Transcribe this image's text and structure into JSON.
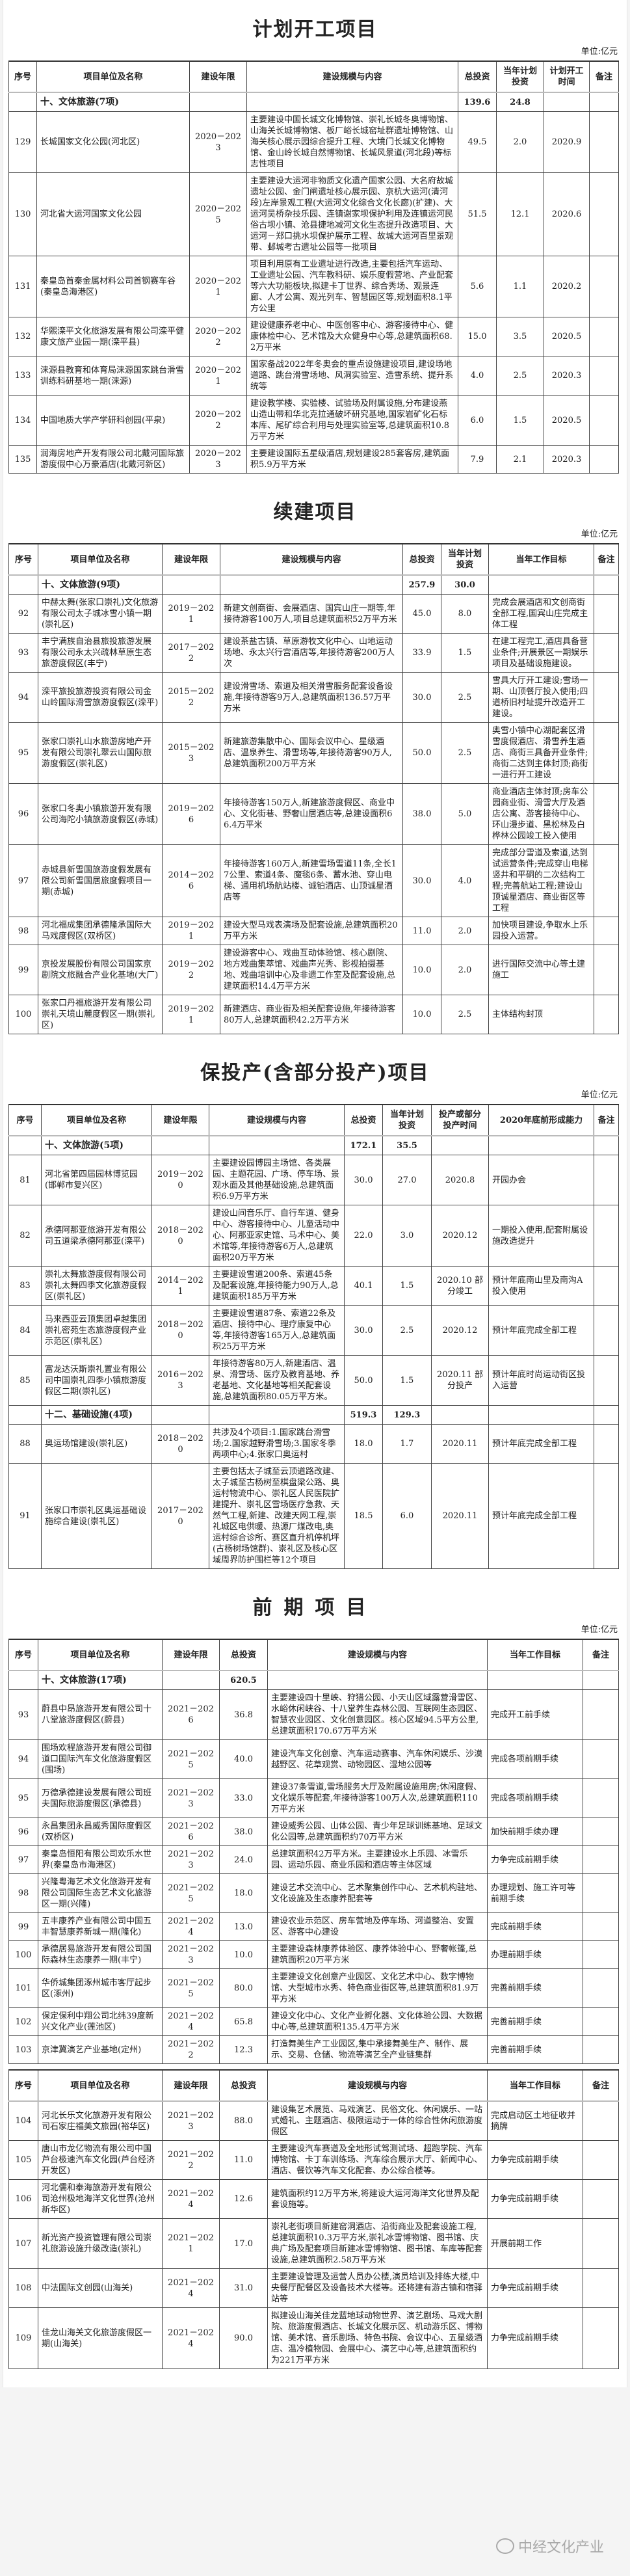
{
  "unit_label": "单位:亿元",
  "watermark": "中经文化产业",
  "sections": [
    {
      "title": "计划开工项目",
      "columns": [
        "序号",
        "项目单位及名称",
        "建设年限",
        "建设规模与内容",
        "总投资",
        "当年计划投资",
        "计划开工时间",
        "备注"
      ],
      "parts": [
        {
          "rows": [
            [
              "",
              "十、文体旅游(7项)",
              "",
              "",
              "139.6",
              "24.8",
              "",
              ""
            ],
            [
              "129",
              "长城国家文化公园(河北区)",
              "2020－2023",
              "主要建设中国长城文化博物馆、崇礼长城冬奥博物馆、山海关长城博物馆、板厂峪长城窑址群遗址博物馆、山海关核心展示园综合提升工程、大境门长城文化博物馆、金山岭长城自然博物馆、长城风景道(河北段)等标志性项目",
              "49.5",
              "2.0",
              "2020.9",
              ""
            ],
            [
              "130",
              "河北省大运河国家文化公园",
              "2020－2025",
              "主要建设大运河非物质文化遗产国家公园、大名府故城遗址公园、金门闸遗址核心展示园、京杭大运河(清河段)左岸景观工程(大运河文化综合文化长廊)(扩建)、大运河吴桥杂技乐园、连镇谢家坝保护利用及连镇运河民俗古坝小镇、沧县捷地减河文化生态提升改造项目、大运河－郑口挑水坝保护展示工程、故城大运河百里景观带、邺城考古遗址公园等一批项目",
              "51.5",
              "12.1",
              "2020.6",
              ""
            ],
            [
              "131",
              "秦皇岛首秦金属材料公司首钢赛车谷(秦皇岛海港区)",
              "2020－2021",
              "项目利用原有工业遗址进行改造,主要包括汽车运动、工业遗址公园、汽车教科研、娱乐度假营地、产业配套等六大功能板块,拟建卡丁世界、综合秀场、观景连廊、人才公寓、观光列车、智慧园区等,规划面积8.1平方公里",
              "5.6",
              "1.1",
              "2020.2",
              ""
            ],
            [
              "132",
              "华熙滦平文化旅游发展有限公司滦平健康文旅产业园一期(滦平县)",
              "2020－2022",
              "建设健康养老中心、中医创客中心、游客接待中心、健康体检中心、艺术馆及大众健身中心等,总建筑面积68.2万平米",
              "15.0",
              "3.5",
              "2020.5",
              ""
            ],
            [
              "133",
              "涞源县教育和体育局涞源国家跳台滑雪训练科研基地一期(涞源)",
              "2020－2021",
              "国家备战2022年冬奥会的重点设施建设项目,建设场地道路、跳台滑雪场地、风洞实验室、造雪系统、提升系统等",
              "4.0",
              "2.5",
              "2020.3",
              ""
            ],
            [
              "134",
              "中国地质大学产学研科创园(平泉)",
              "2020－2022",
              "建设教学楼、实验楼、试验场及附属设施,分布建设燕山造山带和华北克拉通破坏研究基地,国家岩矿化石标本库、尾矿综合利用与处理实验室等,总建筑面积10.8万平方米",
              "6.0",
              "1.5",
              "2020.5",
              ""
            ],
            [
              "135",
              "润海房地产开发有限公司北戴河国际旅游度假中心万豪酒店(北戴河新区)",
              "2020－2023",
              "主要建设国际五星级酒店,规划建设285套客房,建筑面积5.9万平方米",
              "7.9",
              "2.1",
              "2020.3",
              ""
            ]
          ]
        }
      ]
    },
    {
      "title": "续建项目",
      "columns": [
        "序号",
        "项目单位及名称",
        "建设年限",
        "建设规模与内容",
        "总投资",
        "当年计划投资",
        "当年工作目标",
        "备注"
      ],
      "parts": [
        {
          "rows": [
            [
              "",
              "十、文体旅游(9项)",
              "",
              "",
              "257.9",
              "30.0",
              "",
              ""
            ],
            [
              "92",
              "中赫太舞(张家口崇礼)文化旅游有限公司太子城冰雪小镇一期(崇礼区)",
              "2019－2021",
              "新建文创商街、会展酒店、国宾山庄一期等,年接待游客100万人,项目总建筑面积52万平方米",
              "45.0",
              "8.0",
              "完成会展酒店和文创商街全部工程,国宾山庄完成主体工程",
              ""
            ],
            [
              "93",
              "丰宁满族自治县旅投旅游发展有限公司永太兴疏林草原生态旅游度假区(丰宁)",
              "2017－2022",
              "建设茶盐古镇、草原游牧文化中心、山地运动场地、永太兴行宫酒店等,年接待游客200万人次",
              "33.9",
              "1.5",
              "在建工程完工,酒店具备营业条件;开展景区一期娱乐项目及基础设施建设。",
              ""
            ],
            [
              "94",
              "滦平旅投旅游投资有限公司金山岭国际滑雪旅游度假区(滦平)",
              "2015－2022",
              "建设滑雪场、索道及相关滑雪服务配套设备设施,年接待游客9万人,总建筑面积136.57万平方米",
              "30.0",
              "2.5",
              "雪具大厅开工建设;雪场一期、山顶餐厅投入使用;四道桥旧村址提升改造开工建设。",
              ""
            ],
            [
              "95",
              "张家口崇礼山水旅游房地产开发有限公司崇礼翠云山国际旅游度假区(崇礼区)",
              "2015－2023",
              "新建旅游集散中心、国际会议中心、星级酒店、温泉养生、滑雪场等,年接待游客90万人,总建筑面积200万平方米",
              "50.0",
              "2.5",
              "奥雪小镇中心湖配套区滑雪度假酒店、滑雪养生酒店、商街三具备开业条件;商街二达到主体封顶;商街一进行开工建设",
              ""
            ],
            [
              "96",
              "张家口冬奥小镇旅游开发有限公司海陀小镇旅游度假区(赤城)",
              "2019－2026",
              "年接待游客150万人,新建旅游度假区、商业中心、文化街巷、野奢山居酒店等,总建设面积66.4万平米",
              "38.0",
              "5.0",
              "商业酒店主体封顶;房车公园商业街、滑雪大厅及酒店公寓、游客接待中心、环山漫步道、黑松林及白桦林公园竣工投入使用",
              ""
            ],
            [
              "97",
              "赤城县新雪国旅游度假发展有限公司新雪国居旅度假项目一期(赤城)",
              "2014－2026",
              "年接待游客160万人,新建雪场雪道11条,全长17公里、索道4条、魔毯6条、蓄水池、穿山电梯、通用机场航站楼、诚铂酒店、山顶诚星酒店等",
              "30.0",
              "4.0",
              "完成部分雪道及索道,达到试运营条件;完成穿山电梯竖井和平硐的二次结构工程;完善航站工程;建设山顶诚星酒店、商业街区等工程",
              ""
            ],
            [
              "98",
              "河北福成集团承德隆承国际大马戏度假区(双桥区)",
              "2019－2021",
              "建设大型马戏表演场及配套设施,总建筑面积20万平方米",
              "11.0",
              "2.0",
              "加快项目建设,争取水上乐园投入运营。",
              ""
            ],
            [
              "99",
              "京投发展股份有限公司国家京剧院文旅融合产业化基地(大厂)",
              "2019－2022",
              "建设游客中心、戏曲互动体验馆、核心剧院、地方戏曲集萃馆、戏曲声光秀、影视拍摄基地、戏曲培训中心及非遗工作室及配套设施,总建筑面积14.4万平方米",
              "10.0",
              "2.0",
              "进行国际交流中心等土建施工",
              ""
            ],
            [
              "100",
              "张家口丹福旅游开发有限公司崇礼天境山麓度假区一期(崇礼区)",
              "2019－2021",
              "新建酒店、商业街及相关配套设施,年接待游客80万人,总建筑面积42.2万平方米",
              "10.0",
              "2.5",
              "主体结构封顶",
              ""
            ]
          ]
        }
      ]
    },
    {
      "title": "保投产(含部分投产)项目",
      "columns": [
        "序号",
        "项目单位及名称",
        "建设年限",
        "建设规模与内容",
        "总投资",
        "当年计划投资",
        "投产或部分投产时间",
        "2020年底前形成能力",
        "备注"
      ],
      "parts": [
        {
          "rows": [
            [
              "",
              "十、文体旅游(5项)",
              "",
              "",
              "172.1",
              "35.5",
              "",
              "",
              ""
            ],
            [
              "81",
              "河北省第四届园林博览园(邯郸市复兴区)",
              "2019－2020",
              "主要建设园博园主场馆、各类展园、主题花园、广场、停车场、景观水面及其他基础设施,总建筑面积6.9万平方米",
              "30.0",
              "27.0",
              "2020.8",
              "开园办会",
              ""
            ],
            [
              "82",
              "承德阿那亚旅游开发有限公司五道梁承德阿那亚(滦平)",
              "2018－2020",
              "建设山间音乐厅、自行车道、健身中心、游客接待中心、儿童活动中心、阿那亚家史馆、马术中心、美术馆等,年接待游客6万人,总建筑面积20万平方米",
              "22.0",
              "3.0",
              "2020.12",
              "一期投入使用,配套附属设施改造提升",
              ""
            ],
            [
              "83",
              "崇礼太舞旅游度假有限公司崇礼太舞四季文化旅游度假区(崇礼区)",
              "2014－2021",
              "主要建设雪道200条、索道45条及配套设施,年接待能力90万人,总建筑面积185万平方米",
              "40.1",
              "1.5",
              "2020.10 部分竣工",
              "预计年底南山里及南沟A投入使用",
              ""
            ],
            [
              "84",
              "马来西亚云顶集团卓越集团崇礼密苑生态旅游度假产业示范区(崇礼区)",
              "2018－2020",
              "主要建设雪道87条、索道22条及酒店、接待中心、理疗康复中心等,年接待游客165万人,总建筑面积25万平方米",
              "30.0",
              "2.5",
              "2020.12",
              "预计年底完成全部工程",
              ""
            ],
            [
              "85",
              "富龙达沃斯崇礼置业有限公司中国崇礼四季小镇旅游度假区二期(崇礼区)",
              "2016－2023",
              "年接待游客80万人,新建酒店、温泉、滑雪场、医疗及教育基地、养老基地、文化基地等相关配套设施,总建筑面积80.05万平方米。",
              "50.0",
              "1.5",
              "2020.11 部分投产",
              "预计年底时尚运动街区投入运营",
              ""
            ],
            [
              "",
              "十二、基础设施(4项)",
              "",
              "",
              "519.3",
              "129.3",
              "",
              "",
              ""
            ],
            [
              "88",
              "奥运场馆建设(崇礼区)",
              "2018－2020",
              "共涉及4个项目:1.国家跳台滑雪场;2.国家越野滑雪场;3.国家冬季两项中心;4.张家口奥运村",
              "18.0",
              "1.7",
              "2020.11",
              "预计年底完成全部工程",
              ""
            ],
            [
              "91",
              "张家口市崇礼区奥运基础设施综合建设(崇礼区)",
              "2017－2020",
              "主要包括太子城至云顶道路改建、太子城至古杨树至棋盘梁公路、奥运村物流中心、崇礼区人民医院扩建提升、崇礼区雪场医疗急救、天然气工程,新建、改建天网工程,崇礼城区电供暖、热源厂煤改电,奥运村综合诊所、赛区直升机停机坪(古杨树场馆群)、崇礼区及核心区域周界防护围栏等12个项目",
              "18.5",
              "6.0",
              "2020.11",
              "预计年底完成全部工程",
              ""
            ]
          ]
        }
      ]
    },
    {
      "title": "前期项目",
      "columns": [
        "序号",
        "项目单位及名称",
        "建设年限",
        "总投资",
        "建设规模与内容",
        "当年工作目标",
        "备注"
      ],
      "parts": [
        {
          "rows": [
            [
              "",
              "十、文体旅游(17项)",
              "",
              "620.5",
              "",
              "",
              ""
            ],
            [
              "93",
              "蔚县中昂旅游开发有限公司十八堂旅游度假区(蔚县)",
              "2021－2026",
              "36.8",
              "主要建设四十里峡、狩猎公园、小天山区域露营滑雪区、水峪休闲峡谷、十八堂养生森林公园、互联网生态园区、智慧农业园区、文化创意园区。核心区域94.5平方公里,总建筑面积170.67万平方米",
              "完成开工前手续",
              ""
            ],
            [
              "94",
              "围场欢程旅游开发有限公司御道口国际汽车文化旅游度假区(围场)",
              "2021－2025",
              "40.0",
              "建设汽车文化创意、汽车运动赛事、汽车休闲娱乐、沙漠越野区、花草观赏、动物园区、湿地公园等",
              "完成各项前期手续",
              ""
            ],
            [
              "95",
              "万德承德建设发展有限公司班夫国际旅游度假区(承德县)",
              "2021－2023",
              "33.0",
              "建设37条雪道,雪场服务大厅及附属设施用房;休闲度假、文化娱乐等配套,年接待游客100万人次,总建筑面积110万平方米",
              "完成各项前期手续",
              ""
            ],
            [
              "96",
              "永昌集团永昌威秀国际度假区(双桥区)",
              "2021－2026",
              "38.0",
              "建设威秀公园、山体公园、青少年足球训练基地、足球文化公园等,总建筑面积约70万平方米",
              "加快前期手续办理",
              ""
            ],
            [
              "97",
              "秦皇岛恒阳有限公司欢乐水世界(秦皇岛市海港区)",
              "2021－2023",
              "24.0",
              "总建筑面积42万平方米。主要建设水上乐园、冰雪乐园、运动乐园、商业乐园和酒店等主体区域",
              "力争完成前期手续",
              ""
            ],
            [
              "98",
              "兴隆粤海艺术文化旅游开发有限公司国际生态艺术文化旅游区一期(兴隆)",
              "2021－2025",
              "18.0",
              "建设艺术交流中心、艺术聚集创作中心、艺术机构驻地、文化设施及生态康养配套等",
              "办理规划、施工许可等前期手续",
              ""
            ],
            [
              "99",
              "五丰康养产业有限公司中国五丰智慧康养新城一期(隆化)",
              "2021－2024",
              "13.0",
              "建设农业示范区、房车营地及停车场、河道整治、安置区、游客中心建设",
              "完成前期手续",
              ""
            ],
            [
              "100",
              "承德居易旅游开发有限公司国际森林生态康养一期(丰宁)",
              "2021－2023",
              "10.0",
              "主要建设森林康养体验区、康养体验中心、野奢帐篷,总建筑面积20万平方米",
              "办理前期手续",
              ""
            ],
            [
              "101",
              "华侨城集团涿州城市客厅起步区(涿州)",
              "2021－2025",
              "80.0",
              "主要建设文化创意产业园区、文化艺术中心、数字博物馆、大型城市水秀、特色商业街区等,总建筑面积81.9万平方米",
              "完善前期手续",
              ""
            ],
            [
              "102",
              "保定保利中翔公司北纬39度新兴文化产业(莲池区)",
              "2021－2024",
              "65.8",
              "建设文化中心、文化产业孵化器、文化体验公园、大数据中心等,总建筑面积135.4万平方米",
              "完善前期手续",
              ""
            ],
            [
              "103",
              "京津冀演艺产业基地(定州)",
              "2021－2022",
              "12.3",
              "打造舞美生产工业园区,集中承接舞美生产、制作、展示、交易、仓储、物流等演艺全产业链集群",
              "完善前期手续",
              ""
            ]
          ]
        },
        {
          "rows": [
            [
              "104",
              "河北长乐文化旅游开发有限公司石家庄福美文旅园(裕华区)",
              "2021－2023",
              "88.0",
              "建设集艺术展览、马戏演艺、民俗文化、休闲娱乐、一站式婚礼、主题酒店、极限运动于一体的综合性休闲旅游度假区",
              "完成启动区土地征收并摘牌",
              ""
            ],
            [
              "105",
              "唐山市龙亿物流有限公司中国芦台极速汽车文化园(芦台经济开发区)",
              "2021－2022",
              "11.0",
              "主要建设汽车赛道及全地形试驾测试场、超跑学院、汽车博物馆、卡丁车训练场、汽车综合展示大厅、新闻中心、酒店、餐饮等汽车文化配套、办公综合楼等。",
              "力争完成前期手续",
              ""
            ],
            [
              "106",
              "河北儒和泰海旅游开发有限公司沧州极地海洋文化世界(沧州新华区)",
              "2021－2024",
              "12.6",
              "建筑面积约12万平方米,将建设大运河海洋文化世界及配套设施等。",
              "力争完成前期手续",
              ""
            ],
            [
              "107",
              "新光资产投资管理有限公司崇礼旅游设施升级改造(崇礼)",
              "2021－2021",
              "17.0",
              "崇礼老街项目新建窑洞酒店、沿街商业及配套设施工程,总建筑面积10.3万平方米,崇礼冰雪博物馆、图书馆、庆典广场及配套项目新建冰雪博物馆、图书馆、车库等配套设施,总建筑面积2.58万平方米",
              "开展前期工作",
              ""
            ],
            [
              "108",
              "中法国际文创园(山海关)",
              "2021－2024",
              "31.0",
              "主要建设管理及运营人员办公楼,演员培训及排练大楼,中央餐厅配餐区及设备技术大楼等。还将建有游古镇和宿驿站等",
              "力争完成前期手续",
              ""
            ],
            [
              "109",
              "佳龙山海关文化旅游度假区一期(山海关)",
              "2021－2024",
              "90.0",
              "拟建设山海关佳龙蓝地球动物世界、演艺剧场、马戏大剧院、旅游度假酒店、长城文化展示区、机动游乐区、博物馆、美术馆、音乐剧场、特色书院、会议中心、五星级酒店、温冷植物园、会展中心、演艺中心等,总建筑面积约为221万平方米",
              "力争完成前期手续",
              ""
            ]
          ]
        }
      ]
    }
  ]
}
